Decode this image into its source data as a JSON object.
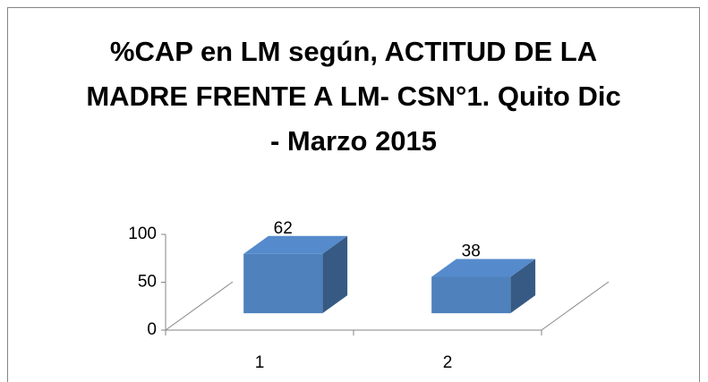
{
  "chart_data": {
    "type": "bar3d",
    "title": "%CAP en LM  según, ACTITUD DE LA MADRE FRENTE A LM- CSN°1. Quito Dic - Marzo 2015",
    "categories": [
      "1",
      "2"
    ],
    "values": [
      62,
      38
    ],
    "color": "#4f81bd",
    "ylim": [
      0,
      100
    ],
    "yticks": [
      0,
      50,
      100
    ],
    "grid": true
  }
}
